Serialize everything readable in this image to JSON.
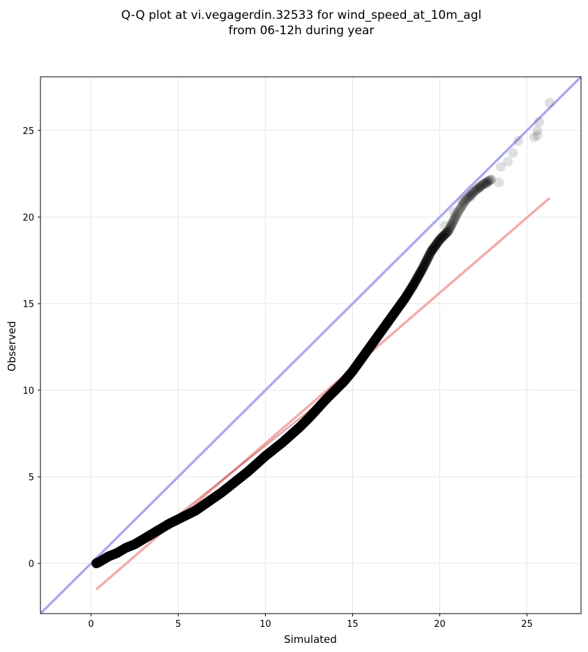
{
  "chart_data": {
    "type": "scatter",
    "title": [
      "Q-Q plot at vi.vegagerdin.32533 for wind_speed_at_10m_agl",
      "from 06-12h during year"
    ],
    "xlabel": "Simulated",
    "ylabel": "Observed",
    "xlim": [
      -2.9,
      28.1
    ],
    "ylim": [
      -2.9,
      28.1
    ],
    "xticks": [
      0,
      5,
      10,
      15,
      20,
      25
    ],
    "yticks": [
      0,
      5,
      10,
      15,
      20,
      25
    ],
    "grid": true,
    "colors": {
      "points": "#000000",
      "identity_line": "#aaaaf0",
      "fit_line": "#f5aaaa",
      "grid": "#e6e6e6"
    },
    "identity_line": {
      "x": [
        -2.9,
        28.1
      ],
      "y": [
        -2.9,
        28.1
      ]
    },
    "fit_line": {
      "x": [
        0.3,
        26.3
      ],
      "y": [
        -1.5,
        21.1
      ]
    },
    "quantile_curve": [
      [
        0.3,
        0.0
      ],
      [
        0.5,
        0.1
      ],
      [
        1.0,
        0.4
      ],
      [
        1.5,
        0.6
      ],
      [
        2.0,
        0.9
      ],
      [
        2.5,
        1.1
      ],
      [
        3.0,
        1.4
      ],
      [
        3.5,
        1.7
      ],
      [
        4.0,
        2.0
      ],
      [
        4.5,
        2.3
      ],
      [
        5.0,
        2.55
      ],
      [
        5.5,
        2.8
      ],
      [
        6.0,
        3.05
      ],
      [
        6.5,
        3.4
      ],
      [
        7.0,
        3.75
      ],
      [
        7.5,
        4.1
      ],
      [
        8.0,
        4.5
      ],
      [
        8.5,
        4.9
      ],
      [
        9.0,
        5.3
      ],
      [
        9.5,
        5.75
      ],
      [
        10.0,
        6.2
      ],
      [
        10.5,
        6.6
      ],
      [
        11.0,
        7.0
      ],
      [
        11.5,
        7.45
      ],
      [
        12.0,
        7.9
      ],
      [
        12.5,
        8.4
      ],
      [
        13.0,
        8.95
      ],
      [
        13.5,
        9.5
      ],
      [
        14.0,
        10.0
      ],
      [
        14.5,
        10.5
      ],
      [
        15.0,
        11.1
      ],
      [
        15.5,
        11.8
      ],
      [
        16.0,
        12.5
      ],
      [
        16.5,
        13.2
      ],
      [
        17.0,
        13.9
      ],
      [
        17.5,
        14.6
      ],
      [
        18.0,
        15.3
      ],
      [
        18.5,
        16.1
      ],
      [
        19.0,
        17.0
      ],
      [
        19.5,
        18.0
      ],
      [
        20.0,
        18.7
      ],
      [
        20.5,
        19.2
      ],
      [
        21.0,
        20.2
      ],
      [
        21.5,
        21.0
      ],
      [
        22.0,
        21.5
      ],
      [
        22.5,
        21.9
      ],
      [
        23.0,
        22.2
      ]
    ],
    "tail_points": [
      [
        20.3,
        19.5
      ],
      [
        20.8,
        20.3
      ],
      [
        21.3,
        20.9
      ],
      [
        21.8,
        21.2
      ],
      [
        22.3,
        21.7
      ],
      [
        22.7,
        21.9
      ],
      [
        23.4,
        22.0
      ],
      [
        23.5,
        22.9
      ],
      [
        23.9,
        23.2
      ],
      [
        24.2,
        23.7
      ],
      [
        24.5,
        24.4
      ],
      [
        25.4,
        24.6
      ],
      [
        25.6,
        24.7
      ],
      [
        25.6,
        25.0
      ],
      [
        25.7,
        25.5
      ],
      [
        26.3,
        26.6
      ]
    ]
  }
}
